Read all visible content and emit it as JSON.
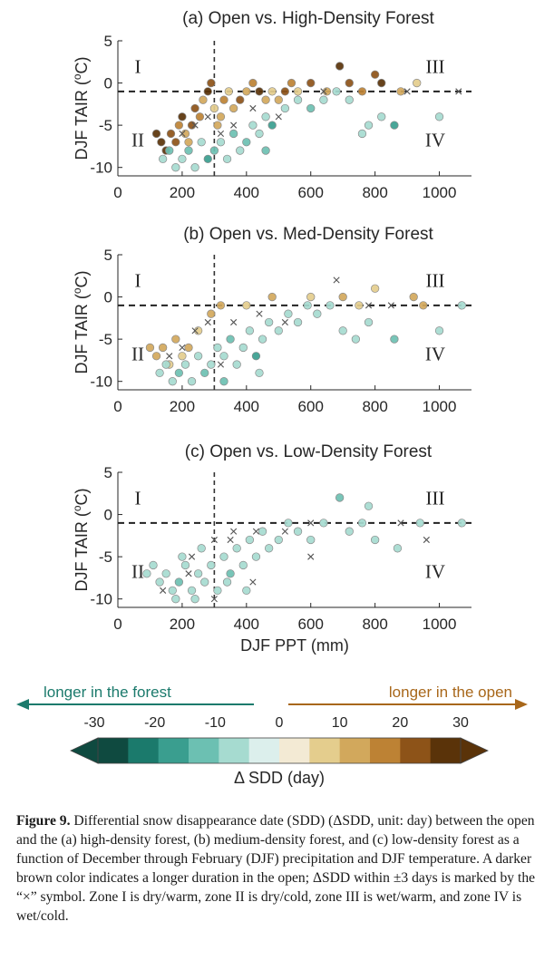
{
  "chart_data": [
    {
      "type": "scatter",
      "title": "(a) Open vs. High-Density Forest",
      "xlabel": "",
      "ylabel": "DJF TAIR (°C)",
      "xlim": [
        0,
        1100
      ],
      "ylim": [
        -11,
        5
      ],
      "xticks": [
        "0",
        "200",
        "400",
        "600",
        "800",
        "1000"
      ],
      "yticks": [
        "5",
        "0",
        "-5",
        "-10"
      ],
      "thresholds": {
        "x": 300,
        "y": -1
      },
      "zones": [
        "I",
        "II",
        "III",
        "IV"
      ],
      "points": [
        [
          120,
          -6,
          28
        ],
        [
          135,
          -7,
          26
        ],
        [
          150,
          -8,
          30
        ],
        [
          165,
          -6,
          22
        ],
        [
          180,
          -7,
          24
        ],
        [
          190,
          -5,
          18
        ],
        [
          200,
          -4,
          26
        ],
        [
          210,
          -6,
          14
        ],
        [
          220,
          -7,
          10
        ],
        [
          230,
          -5,
          22
        ],
        [
          240,
          -3,
          20
        ],
        [
          255,
          -4,
          16
        ],
        [
          265,
          -2,
          12
        ],
        [
          280,
          -1,
          26
        ],
        [
          290,
          0,
          20
        ],
        [
          300,
          -3,
          8
        ],
        [
          310,
          -5,
          14
        ],
        [
          320,
          -4,
          10
        ],
        [
          330,
          -2,
          18
        ],
        [
          345,
          -1,
          6
        ],
        [
          360,
          -3,
          12
        ],
        [
          380,
          -2,
          22
        ],
        [
          400,
          -1,
          10
        ],
        [
          420,
          0,
          16
        ],
        [
          440,
          -1,
          26
        ],
        [
          460,
          -2,
          14
        ],
        [
          480,
          -1,
          8
        ],
        [
          500,
          -2,
          12
        ],
        [
          520,
          -1,
          22
        ],
        [
          540,
          0,
          18
        ],
        [
          560,
          -1,
          6
        ],
        [
          600,
          0,
          20
        ],
        [
          650,
          -1,
          14
        ],
        [
          690,
          2,
          28
        ],
        [
          720,
          0,
          24
        ],
        [
          760,
          -1,
          18
        ],
        [
          800,
          1,
          20
        ],
        [
          820,
          0,
          26
        ],
        [
          880,
          -1,
          12
        ],
        [
          930,
          0,
          8
        ],
        [
          140,
          -9,
          -10
        ],
        [
          160,
          -8,
          -12
        ],
        [
          180,
          -10,
          -8
        ],
        [
          200,
          -9,
          -6
        ],
        [
          220,
          -8,
          -14
        ],
        [
          240,
          -10,
          -10
        ],
        [
          260,
          -7,
          -6
        ],
        [
          280,
          -9,
          -16
        ],
        [
          300,
          -8,
          -12
        ],
        [
          320,
          -7,
          -8
        ],
        [
          340,
          -9,
          -6
        ],
        [
          360,
          -6,
          -14
        ],
        [
          380,
          -8,
          -10
        ],
        [
          400,
          -7,
          -12
        ],
        [
          420,
          -5,
          -8
        ],
        [
          440,
          -6,
          -6
        ],
        [
          460,
          -4,
          -10
        ],
        [
          480,
          -5,
          -16
        ],
        [
          520,
          -3,
          -8
        ],
        [
          560,
          -2,
          -6
        ],
        [
          600,
          -3,
          -12
        ],
        [
          640,
          -2,
          -8
        ],
        [
          680,
          -1,
          -6
        ],
        [
          720,
          -2,
          -10
        ],
        [
          780,
          -5,
          -8
        ],
        [
          820,
          -4,
          -6
        ],
        [
          860,
          -5,
          -18
        ],
        [
          1000,
          -4,
          -6
        ],
        [
          760,
          -6,
          -10
        ],
        [
          460,
          -8,
          -12
        ],
        [
          200,
          -6,
          0
        ],
        [
          240,
          -5,
          1
        ],
        [
          280,
          -4,
          -1
        ],
        [
          320,
          -6,
          2
        ],
        [
          360,
          -5,
          0
        ],
        [
          420,
          -3,
          1
        ],
        [
          500,
          -4,
          -1
        ],
        [
          640,
          -1,
          0
        ],
        [
          900,
          -1,
          1
        ],
        [
          1060,
          -1,
          0
        ]
      ]
    },
    {
      "type": "scatter",
      "title": "(b) Open vs. Med-Density Forest",
      "xlabel": "",
      "ylabel": "DJF TAIR (°C)",
      "xlim": [
        0,
        1100
      ],
      "ylim": [
        -11,
        5
      ],
      "xticks": [
        "0",
        "200",
        "400",
        "600",
        "800",
        "1000"
      ],
      "yticks": [
        "5",
        "0",
        "-5",
        "-10"
      ],
      "thresholds": {
        "x": 300,
        "y": -1
      },
      "zones": [
        "I",
        "II",
        "III",
        "IV"
      ],
      "points": [
        [
          100,
          -6,
          14
        ],
        [
          120,
          -7,
          12
        ],
        [
          140,
          -6,
          10
        ],
        [
          160,
          -8,
          8
        ],
        [
          180,
          -5,
          12
        ],
        [
          200,
          -7,
          6
        ],
        [
          220,
          -6,
          10
        ],
        [
          250,
          -4,
          8
        ],
        [
          290,
          -2,
          10
        ],
        [
          320,
          -1,
          12
        ],
        [
          400,
          -1,
          6
        ],
        [
          480,
          0,
          10
        ],
        [
          600,
          0,
          8
        ],
        [
          700,
          0,
          12
        ],
        [
          750,
          -1,
          8
        ],
        [
          800,
          1,
          6
        ],
        [
          920,
          0,
          10
        ],
        [
          950,
          -1,
          12
        ],
        [
          130,
          -9,
          -8
        ],
        [
          150,
          -8,
          -10
        ],
        [
          170,
          -10,
          -6
        ],
        [
          190,
          -9,
          -12
        ],
        [
          210,
          -8,
          -8
        ],
        [
          230,
          -10,
          -10
        ],
        [
          250,
          -7,
          -6
        ],
        [
          270,
          -9,
          -14
        ],
        [
          290,
          -8,
          -8
        ],
        [
          310,
          -6,
          -10
        ],
        [
          330,
          -7,
          -6
        ],
        [
          350,
          -5,
          -12
        ],
        [
          370,
          -8,
          -8
        ],
        [
          390,
          -6,
          -10
        ],
        [
          410,
          -4,
          -6
        ],
        [
          430,
          -7,
          -16
        ],
        [
          450,
          -5,
          -8
        ],
        [
          470,
          -3,
          -6
        ],
        [
          500,
          -4,
          -10
        ],
        [
          530,
          -2,
          -8
        ],
        [
          560,
          -3,
          -6
        ],
        [
          590,
          -1,
          -8
        ],
        [
          620,
          -2,
          -10
        ],
        [
          660,
          -1,
          -6
        ],
        [
          700,
          -4,
          -8
        ],
        [
          740,
          -5,
          -6
        ],
        [
          780,
          -3,
          -10
        ],
        [
          860,
          -5,
          -14
        ],
        [
          1000,
          -4,
          -6
        ],
        [
          1070,
          -1,
          -8
        ],
        [
          330,
          -10,
          -12
        ],
        [
          440,
          -9,
          -8
        ],
        [
          160,
          -7,
          1
        ],
        [
          200,
          -6,
          -1
        ],
        [
          240,
          -4,
          0
        ],
        [
          280,
          -3,
          2
        ],
        [
          320,
          -8,
          1
        ],
        [
          360,
          -3,
          -1
        ],
        [
          440,
          -2,
          0
        ],
        [
          520,
          -3,
          1
        ],
        [
          680,
          2,
          0
        ],
        [
          780,
          -1,
          -1
        ],
        [
          850,
          -1,
          2
        ]
      ]
    },
    {
      "type": "scatter",
      "title": "(c) Open vs. Low-Density Forest",
      "xlabel": "DJF PPT (mm)",
      "ylabel": "DJF TAIR (°C)",
      "xlim": [
        0,
        1100
      ],
      "ylim": [
        -11,
        5
      ],
      "xticks": [
        "0",
        "200",
        "400",
        "600",
        "800",
        "1000"
      ],
      "yticks": [
        "5",
        "0",
        "-5",
        "-10"
      ],
      "thresholds": {
        "x": 300,
        "y": -1
      },
      "zones": [
        "I",
        "II",
        "III",
        "IV"
      ],
      "points": [
        [
          90,
          -7,
          -8
        ],
        [
          110,
          -6,
          -6
        ],
        [
          130,
          -8,
          -10
        ],
        [
          150,
          -7,
          -8
        ],
        [
          170,
          -9,
          -6
        ],
        [
          190,
          -8,
          -12
        ],
        [
          210,
          -6,
          -8
        ],
        [
          230,
          -9,
          -10
        ],
        [
          250,
          -7,
          -6
        ],
        [
          270,
          -8,
          -8
        ],
        [
          290,
          -6,
          -10
        ],
        [
          310,
          -9,
          -6
        ],
        [
          330,
          -5,
          -8
        ],
        [
          350,
          -7,
          -12
        ],
        [
          370,
          -4,
          -6
        ],
        [
          390,
          -6,
          -8
        ],
        [
          410,
          -3,
          -10
        ],
        [
          430,
          -5,
          -6
        ],
        [
          450,
          -2,
          -8
        ],
        [
          470,
          -4,
          -10
        ],
        [
          500,
          -3,
          -6
        ],
        [
          530,
          -1,
          -8
        ],
        [
          560,
          -2,
          -6
        ],
        [
          600,
          -3,
          -10
        ],
        [
          640,
          -1,
          -8
        ],
        [
          690,
          2,
          -14
        ],
        [
          720,
          -2,
          -6
        ],
        [
          760,
          -1,
          -8
        ],
        [
          780,
          1,
          -6
        ],
        [
          800,
          -3,
          -10
        ],
        [
          870,
          -4,
          -8
        ],
        [
          940,
          -1,
          -6
        ],
        [
          1070,
          -1,
          -8
        ],
        [
          180,
          -10,
          -6
        ],
        [
          240,
          -10,
          -8
        ],
        [
          400,
          -9,
          -6
        ],
        [
          340,
          -8,
          -10
        ],
        [
          200,
          -5,
          -6
        ],
        [
          260,
          -4,
          -8
        ],
        [
          140,
          -9,
          -2
        ],
        [
          220,
          -7,
          -3
        ],
        [
          300,
          -10,
          -2
        ],
        [
          360,
          -2,
          -3
        ],
        [
          420,
          -8,
          -2
        ],
        [
          520,
          -2,
          -3
        ],
        [
          600,
          -1,
          -2
        ],
        [
          880,
          -1,
          -3
        ],
        [
          960,
          -3,
          -2
        ],
        [
          230,
          -5,
          0
        ],
        [
          300,
          -3,
          1
        ],
        [
          350,
          -3,
          -1
        ],
        [
          430,
          -2,
          0
        ],
        [
          600,
          -5,
          1
        ]
      ]
    }
  ],
  "colorbar": {
    "ticks": [
      "-30",
      "-20",
      "-10",
      "0",
      "10",
      "20",
      "30"
    ],
    "title": "Δ SDD (day)",
    "left_arrow_label": "longer in the forest",
    "right_arrow_label": "longer in the open",
    "colors": [
      "#0f4a40",
      "#1b7a6c",
      "#3a9e8f",
      "#6cc0b2",
      "#a6dbd0",
      "#dcefec",
      "#f3ead4",
      "#e4cd8d",
      "#d2a85c",
      "#bd8234",
      "#8d5318",
      "#5a3309"
    ],
    "forest_color": "#1b7a6c",
    "open_color": "#a8671a"
  },
  "caption": {
    "label": "Figure 9.",
    "text": "Differential snow disappearance date (SDD) (ΔSDD, unit: day) between the open and the (a) high-density forest, (b) medium-density forest, and (c) low-density forest as a function of December through February (DJF) precipitation and DJF temperature. A darker brown color indicates a longer duration in the open; ΔSDD within ±3 days is marked by the “×” symbol. Zone I is dry/warm, zone II is dry/cold, zone III is wet/warm, and zone IV is wet/cold."
  }
}
